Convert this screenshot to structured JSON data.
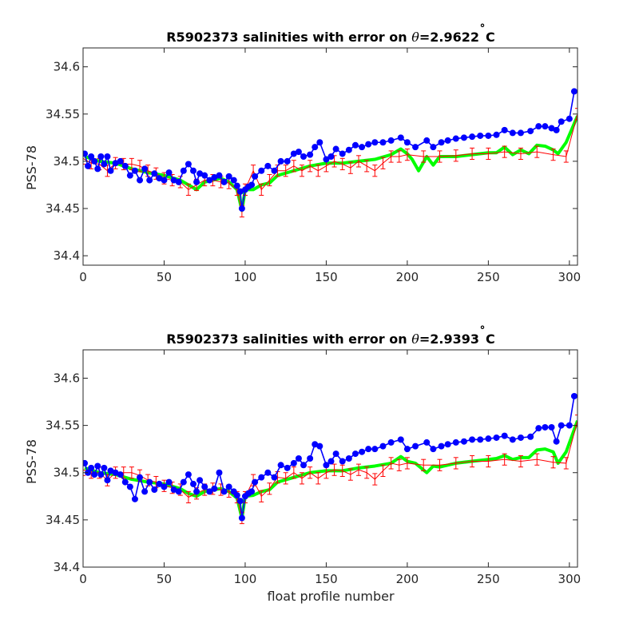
{
  "chart_data": [
    {
      "type": "line",
      "title": "R5902373 salinities with error on θ=2.9622˚C",
      "title_parts": {
        "prefix": "R5902373 salinities with error on ",
        "symbol": "θ",
        "suffix": "=2.9622",
        "degree": "˚",
        "unit": "C"
      },
      "xlabel": "",
      "ylabel": "PSS-78",
      "xlim": [
        0,
        305
      ],
      "ylim": [
        34.39,
        34.62
      ],
      "xticks": [
        0,
        50,
        100,
        150,
        200,
        250,
        300
      ],
      "xtick_labels": [
        "0",
        "50",
        "100",
        "150",
        "200",
        "250",
        "300"
      ],
      "yticks": [
        34.4,
        34.45,
        34.5,
        34.55,
        34.6
      ],
      "ytick_labels": [
        "34.4",
        "34.45",
        "34.5",
        "34.55",
        "34.6"
      ],
      "series": [
        {
          "color": "#00ff00",
          "x": [
            1,
            10,
            20,
            30,
            40,
            50,
            60,
            65,
            70,
            75,
            80,
            85,
            90,
            95,
            98,
            100,
            105,
            110,
            115,
            120,
            130,
            140,
            150,
            160,
            170,
            180,
            190,
            196,
            200,
            203,
            207,
            212,
            216,
            220,
            230,
            240,
            250,
            255,
            260,
            265,
            270,
            275,
            280,
            285,
            290,
            293,
            298,
            305
          ],
          "y": [
            34.505,
            34.5,
            34.498,
            34.492,
            34.488,
            34.485,
            34.48,
            34.475,
            34.47,
            34.478,
            34.48,
            34.482,
            34.478,
            34.47,
            34.448,
            34.47,
            34.47,
            34.475,
            34.477,
            34.485,
            34.49,
            34.495,
            34.498,
            34.498,
            34.5,
            34.502,
            34.507,
            34.513,
            34.508,
            34.502,
            34.49,
            34.505,
            34.496,
            34.505,
            34.505,
            34.507,
            34.509,
            34.509,
            34.515,
            34.507,
            34.512,
            34.508,
            34.517,
            34.516,
            34.512,
            34.508,
            34.52,
            34.548
          ]
        },
        {
          "color": "#ff0000",
          "x": [
            0,
            5,
            10,
            15,
            20,
            25,
            30,
            35,
            40,
            45,
            50,
            55,
            60,
            65,
            70,
            75,
            80,
            85,
            90,
            95,
            98,
            100,
            105,
            110,
            115,
            120,
            125,
            130,
            135,
            140,
            145,
            150,
            155,
            160,
            165,
            170,
            175,
            180,
            185,
            190,
            195,
            200,
            210,
            220,
            230,
            240,
            250,
            260,
            270,
            280,
            290,
            298,
            305
          ],
          "y": [
            34.503,
            34.498,
            34.497,
            34.49,
            34.498,
            34.497,
            34.497,
            34.495,
            34.49,
            34.487,
            34.482,
            34.48,
            34.478,
            34.47,
            34.475,
            34.48,
            34.48,
            34.478,
            34.477,
            34.47,
            34.447,
            34.47,
            34.49,
            34.47,
            34.48,
            34.49,
            34.49,
            34.495,
            34.49,
            34.495,
            34.49,
            34.495,
            34.5,
            34.497,
            34.493,
            34.5,
            34.495,
            34.49,
            34.498,
            34.505,
            34.505,
            34.507,
            34.505,
            34.505,
            34.506,
            34.508,
            34.508,
            34.51,
            34.508,
            34.51,
            34.507,
            34.505,
            34.55
          ],
          "error": 0.006
        },
        {
          "color": "#0000ff",
          "x": [
            1,
            3,
            5,
            7,
            9,
            11,
            13,
            15,
            17,
            20,
            23,
            26,
            29,
            32,
            35,
            38,
            41,
            44,
            47,
            50,
            53,
            56,
            59,
            62,
            65,
            68,
            70,
            72,
            75,
            78,
            81,
            84,
            87,
            90,
            93,
            95,
            97,
            98,
            100,
            102,
            104,
            106,
            110,
            114,
            118,
            122,
            126,
            130,
            133,
            136,
            140,
            143,
            146,
            150,
            153,
            156,
            160,
            164,
            168,
            172,
            176,
            180,
            185,
            190,
            196,
            200,
            205,
            212,
            216,
            221,
            225,
            230,
            235,
            240,
            245,
            250,
            255,
            260,
            265,
            270,
            276,
            281,
            285,
            289,
            292,
            295,
            300,
            303
          ],
          "y": [
            34.508,
            34.495,
            34.505,
            34.5,
            34.492,
            34.505,
            34.497,
            34.505,
            34.49,
            34.498,
            34.5,
            34.495,
            34.485,
            34.49,
            34.48,
            34.492,
            34.48,
            34.487,
            34.482,
            34.48,
            34.488,
            34.48,
            34.478,
            34.49,
            34.497,
            34.49,
            34.478,
            34.487,
            34.485,
            34.48,
            34.483,
            34.485,
            34.478,
            34.484,
            34.48,
            34.474,
            34.468,
            34.45,
            34.47,
            34.473,
            34.475,
            34.484,
            34.49,
            34.495,
            34.49,
            34.5,
            34.5,
            34.508,
            34.51,
            34.505,
            34.507,
            34.515,
            34.52,
            34.502,
            34.505,
            34.513,
            34.508,
            34.512,
            34.517,
            34.515,
            34.518,
            34.52,
            34.52,
            34.522,
            34.525,
            34.52,
            34.515,
            34.522,
            34.515,
            34.52,
            34.522,
            34.524,
            34.525,
            34.526,
            34.527,
            34.527,
            34.528,
            34.533,
            34.53,
            34.53,
            34.532,
            34.537,
            34.537,
            34.535,
            34.533,
            34.542,
            34.545,
            34.574
          ]
        }
      ]
    },
    {
      "type": "line",
      "title": "R5902373 salinities with error on θ=2.9393˚C",
      "title_parts": {
        "prefix": "R5902373 salinities with error on ",
        "symbol": "θ",
        "suffix": "=2.9393",
        "degree": "˚",
        "unit": "C"
      },
      "xlabel": "float profile number",
      "ylabel": "PSS-78",
      "xlim": [
        0,
        305
      ],
      "ylim": [
        34.4,
        34.63
      ],
      "xticks": [
        0,
        50,
        100,
        150,
        200,
        250,
        300
      ],
      "xtick_labels": [
        "0",
        "50",
        "100",
        "150",
        "200",
        "250",
        "300"
      ],
      "yticks": [
        34.4,
        34.45,
        34.5,
        34.55,
        34.6
      ],
      "ytick_labels": [
        "34.4",
        "34.45",
        "34.5",
        "34.55",
        "34.6"
      ],
      "series": [
        {
          "color": "#00ff00",
          "x": [
            1,
            10,
            20,
            30,
            40,
            50,
            60,
            65,
            70,
            75,
            80,
            85,
            90,
            95,
            98,
            100,
            105,
            110,
            115,
            120,
            130,
            140,
            150,
            160,
            170,
            180,
            190,
            196,
            200,
            205,
            212,
            216,
            220,
            230,
            240,
            250,
            255,
            260,
            265,
            270,
            275,
            280,
            285,
            290,
            293,
            298,
            305
          ],
          "y": [
            34.505,
            34.5,
            34.498,
            34.493,
            34.49,
            34.488,
            34.483,
            34.478,
            34.475,
            34.48,
            34.482,
            34.483,
            34.48,
            34.473,
            34.452,
            34.475,
            34.476,
            34.48,
            34.482,
            34.49,
            34.495,
            34.5,
            34.502,
            34.502,
            34.505,
            34.507,
            34.51,
            34.517,
            34.512,
            34.51,
            34.5,
            34.507,
            34.506,
            34.51,
            34.512,
            34.514,
            34.515,
            34.518,
            34.514,
            34.516,
            34.516,
            34.524,
            34.525,
            34.522,
            34.51,
            34.522,
            34.555
          ]
        },
        {
          "color": "#ff0000",
          "x": [
            0,
            5,
            10,
            15,
            20,
            25,
            30,
            35,
            40,
            45,
            50,
            55,
            60,
            65,
            70,
            75,
            80,
            85,
            90,
            95,
            98,
            100,
            105,
            110,
            115,
            120,
            125,
            130,
            135,
            140,
            145,
            150,
            155,
            160,
            165,
            170,
            175,
            180,
            185,
            190,
            195,
            200,
            210,
            220,
            230,
            240,
            250,
            260,
            270,
            280,
            290,
            298,
            305
          ],
          "y": [
            34.503,
            34.5,
            34.5,
            34.492,
            34.5,
            34.5,
            34.5,
            34.497,
            34.492,
            34.49,
            34.486,
            34.484,
            34.482,
            34.474,
            34.478,
            34.482,
            34.483,
            34.482,
            34.48,
            34.474,
            34.452,
            34.474,
            34.492,
            34.475,
            34.483,
            34.495,
            34.494,
            34.5,
            34.494,
            34.5,
            34.494,
            34.5,
            34.503,
            34.502,
            34.498,
            34.503,
            34.5,
            34.493,
            34.502,
            34.51,
            34.508,
            34.51,
            34.508,
            34.508,
            34.51,
            34.512,
            34.512,
            34.514,
            34.512,
            34.514,
            34.511,
            34.51,
            34.555
          ],
          "error": 0.006
        },
        {
          "color": "#0000ff",
          "x": [
            1,
            3,
            5,
            7,
            9,
            11,
            13,
            15,
            17,
            20,
            23,
            26,
            29,
            32,
            35,
            38,
            41,
            44,
            47,
            50,
            53,
            56,
            59,
            62,
            65,
            68,
            70,
            72,
            75,
            78,
            81,
            84,
            87,
            90,
            93,
            95,
            97,
            98,
            100,
            102,
            104,
            106,
            110,
            114,
            118,
            122,
            126,
            130,
            133,
            136,
            140,
            143,
            146,
            150,
            153,
            156,
            160,
            164,
            168,
            172,
            176,
            180,
            185,
            190,
            196,
            200,
            205,
            212,
            216,
            221,
            225,
            230,
            235,
            240,
            245,
            250,
            255,
            260,
            265,
            270,
            276,
            281,
            285,
            289,
            292,
            295,
            300,
            303
          ],
          "y": [
            34.51,
            34.5,
            34.505,
            34.498,
            34.507,
            34.498,
            34.505,
            34.492,
            34.502,
            34.5,
            34.498,
            34.49,
            34.485,
            34.472,
            34.495,
            34.48,
            34.49,
            34.482,
            34.488,
            34.485,
            34.49,
            34.482,
            34.48,
            34.49,
            34.498,
            34.488,
            34.48,
            34.492,
            34.485,
            34.48,
            34.483,
            34.5,
            34.48,
            34.485,
            34.48,
            34.476,
            34.47,
            34.452,
            34.475,
            34.478,
            34.48,
            34.49,
            34.495,
            34.5,
            34.495,
            34.508,
            34.505,
            34.51,
            34.515,
            34.508,
            34.515,
            34.53,
            34.528,
            34.508,
            34.512,
            34.52,
            34.512,
            34.515,
            34.52,
            34.522,
            34.525,
            34.525,
            34.528,
            34.532,
            34.535,
            34.525,
            34.528,
            34.532,
            34.525,
            34.528,
            34.53,
            34.532,
            34.533,
            34.535,
            34.535,
            34.536,
            34.537,
            34.539,
            34.535,
            34.537,
            34.538,
            34.547,
            34.548,
            34.548,
            34.533,
            34.55,
            34.55,
            34.581
          ]
        }
      ]
    }
  ]
}
